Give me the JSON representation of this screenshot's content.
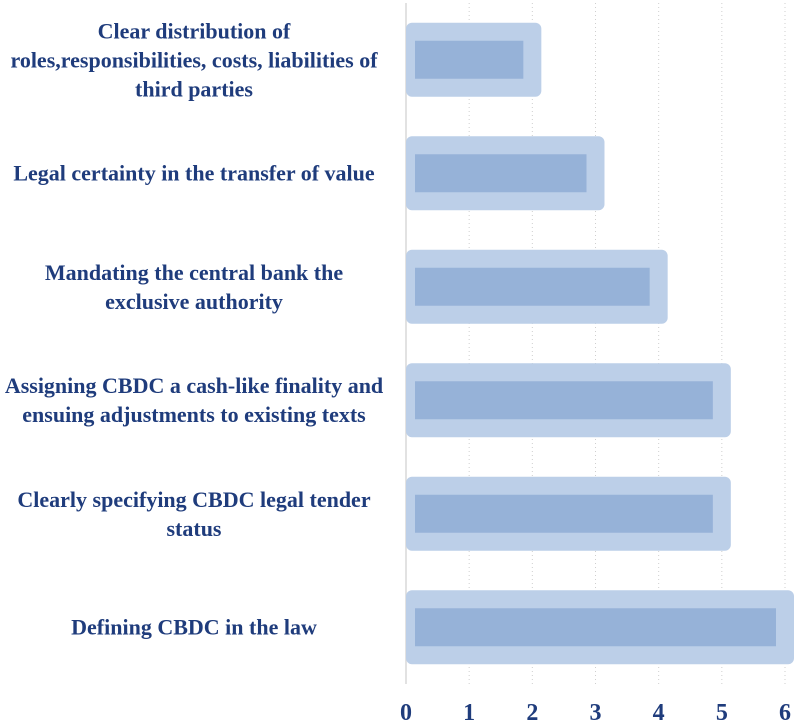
{
  "chart_data": {
    "type": "bar",
    "orientation": "horizontal",
    "categories": [
      "Clear distribution of roles,responsibilities, costs, liabilities of third parties",
      "Legal certainty in the transfer of value",
      "Mandating the central bank the exclusive authority",
      "Assigning CBDC a cash-like finality and ensuing adjustments to existing texts",
      "Clearly specifying CBDC legal tender status",
      "Defining CBDC in the law"
    ],
    "values": [
      2,
      3,
      4,
      5,
      5,
      6
    ],
    "color": "#96b2d8",
    "border_color": "#bccfe8",
    "xlim": [
      0,
      6
    ],
    "xticks": [
      0,
      1,
      2,
      3,
      4,
      5,
      6
    ],
    "grid": true
  }
}
